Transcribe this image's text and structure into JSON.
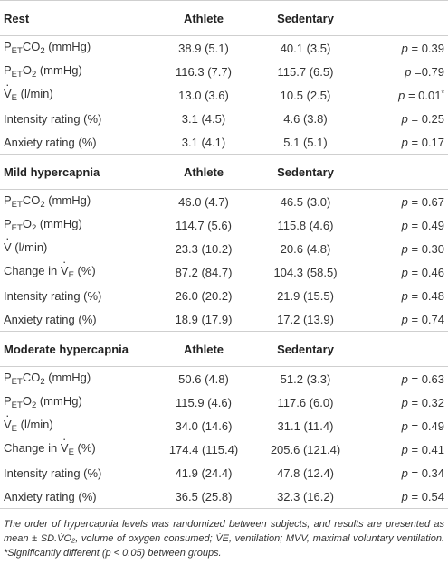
{
  "sections": [
    {
      "title": "Rest",
      "col_athlete": "Athlete",
      "col_sedentary": "Sedentary",
      "rows": [
        {
          "label_parts": [
            "P",
            "ET",
            "CO",
            "2",
            " (mmHg)"
          ],
          "athlete": "38.9 (5.1)",
          "sedentary": "40.1 (3.5)",
          "p": "p = 0.39"
        },
        {
          "label_parts": [
            "P",
            "ET",
            "O",
            "2",
            " (mmHg)"
          ],
          "athlete": "116.3 (7.7)",
          "sedentary": "115.7 (6.5)",
          "p": "p =0.79"
        },
        {
          "label_parts": [
            "V",
            "E",
            " (l/min)"
          ],
          "athlete": "13.0 (3.6)",
          "sedentary": "10.5 (2.5)",
          "p": "p = 0.01*"
        },
        {
          "label": "Intensity rating (%)",
          "athlete": "3.1 (4.5)",
          "sedentary": "4.6 (3.8)",
          "p": "p = 0.25"
        },
        {
          "label": "Anxiety rating (%)",
          "athlete": "3.1 (4.1)",
          "sedentary": "5.1 (5.1)",
          "p": "p = 0.17"
        }
      ]
    },
    {
      "title": "Mild hypercapnia",
      "col_athlete": "Athlete",
      "col_sedentary": "Sedentary",
      "rows": [
        {
          "label_parts": [
            "P",
            "ET",
            "CO",
            "2",
            " (mmHg)"
          ],
          "athlete": "46.0 (4.7)",
          "sedentary": "46.5 (3.0)",
          "p": "p = 0.67"
        },
        {
          "label_parts": [
            "P",
            "ET",
            "O",
            "2",
            " (mmHg)"
          ],
          "athlete": "114.7 (5.6)",
          "sedentary": "115.8 (4.6)",
          "p": "p = 0.49"
        },
        {
          "label_parts": [
            "V",
            "",
            " (l/min)"
          ],
          "athlete": "23.3 (10.2)",
          "sedentary": "20.6 (4.8)",
          "p": "p = 0.30"
        },
        {
          "label_parts": [
            "Change in V",
            "E",
            " (%)"
          ],
          "athlete": "87.2 (84.7)",
          "sedentary": "104.3 (58.5)",
          "p": "p = 0.46"
        },
        {
          "label": "Intensity rating (%)",
          "athlete": "26.0 (20.2)",
          "sedentary": "21.9 (15.5)",
          "p": "p = 0.48"
        },
        {
          "label": "Anxiety rating (%)",
          "athlete": "18.9 (17.9)",
          "sedentary": "17.2 (13.9)",
          "p": "p = 0.74"
        }
      ]
    },
    {
      "title": "Moderate hypercapnia",
      "col_athlete": "Athlete",
      "col_sedentary": "Sedentary",
      "rows": [
        {
          "label_parts": [
            "P",
            "ET",
            "CO",
            "2",
            " (mmHg)"
          ],
          "athlete": "50.6 (4.8)",
          "sedentary": "51.2 (3.3)",
          "p": "p = 0.63"
        },
        {
          "label_parts": [
            "P",
            "ET",
            "O",
            "2",
            " (mmHg)"
          ],
          "athlete": "115.9 (4.6)",
          "sedentary": "117.6 (6.0)",
          "p": "p = 0.32"
        },
        {
          "label_parts": [
            "V",
            "E",
            " (l/min)"
          ],
          "athlete": "34.0 (14.6)",
          "sedentary": "31.1 (11.4)",
          "p": "p = 0.49"
        },
        {
          "label_parts": [
            "Change in V",
            "E",
            " (%)"
          ],
          "athlete": "174.4 (115.4)",
          "sedentary": "205.6 (121.4)",
          "p": "p = 0.41"
        },
        {
          "label": "Intensity rating (%)",
          "athlete": "41.9 (24.4)",
          "sedentary": "47.8 (12.4)",
          "p": "p = 0.34"
        },
        {
          "label": "Anxiety rating (%)",
          "athlete": "36.5 (25.8)",
          "sedentary": "32.3 (16.2)",
          "p": "p = 0.54"
        }
      ]
    }
  ],
  "footnote": "The order of hypercapnia levels was randomized between subjects, and results are presented as mean ± SD.V̇O₂, volume of oxygen consumed; V̇E, ventilation; MVV, maximal voluntary ventilation. *Significantly different (p < 0.05) between groups."
}
